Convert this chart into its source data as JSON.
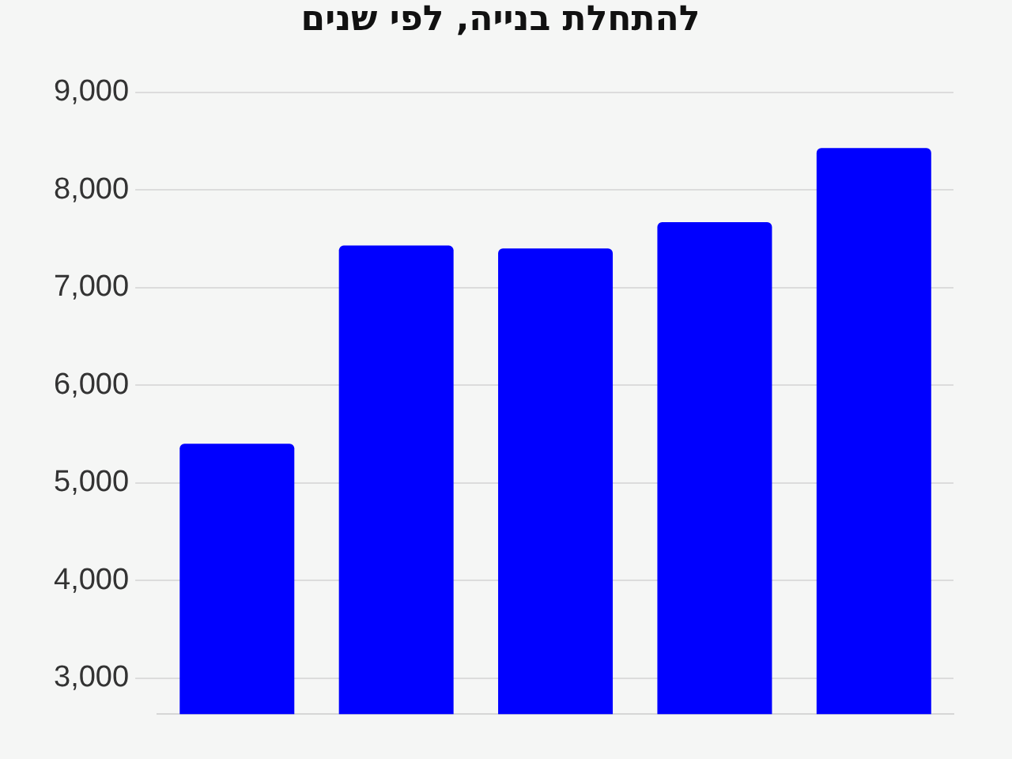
{
  "chart_data": {
    "type": "bar",
    "title": "להתחלת בנייה, לפי שנים",
    "categories": [
      null,
      null,
      null,
      null,
      null
    ],
    "values": [
      5400,
      7430,
      7400,
      7670,
      8430
    ],
    "color": "#0000ff",
    "ylim": [
      2630,
      9000
    ],
    "yticks": [
      {
        "value": 3000,
        "label": "3,000"
      },
      {
        "value": 4000,
        "label": "4,000"
      },
      {
        "value": 5000,
        "label": "5,000"
      },
      {
        "value": 6000,
        "label": "6,000"
      },
      {
        "value": 7000,
        "label": "7,000"
      },
      {
        "value": 8000,
        "label": "8,000"
      },
      {
        "value": 9000,
        "label": "9,000"
      }
    ],
    "grid": "y"
  }
}
